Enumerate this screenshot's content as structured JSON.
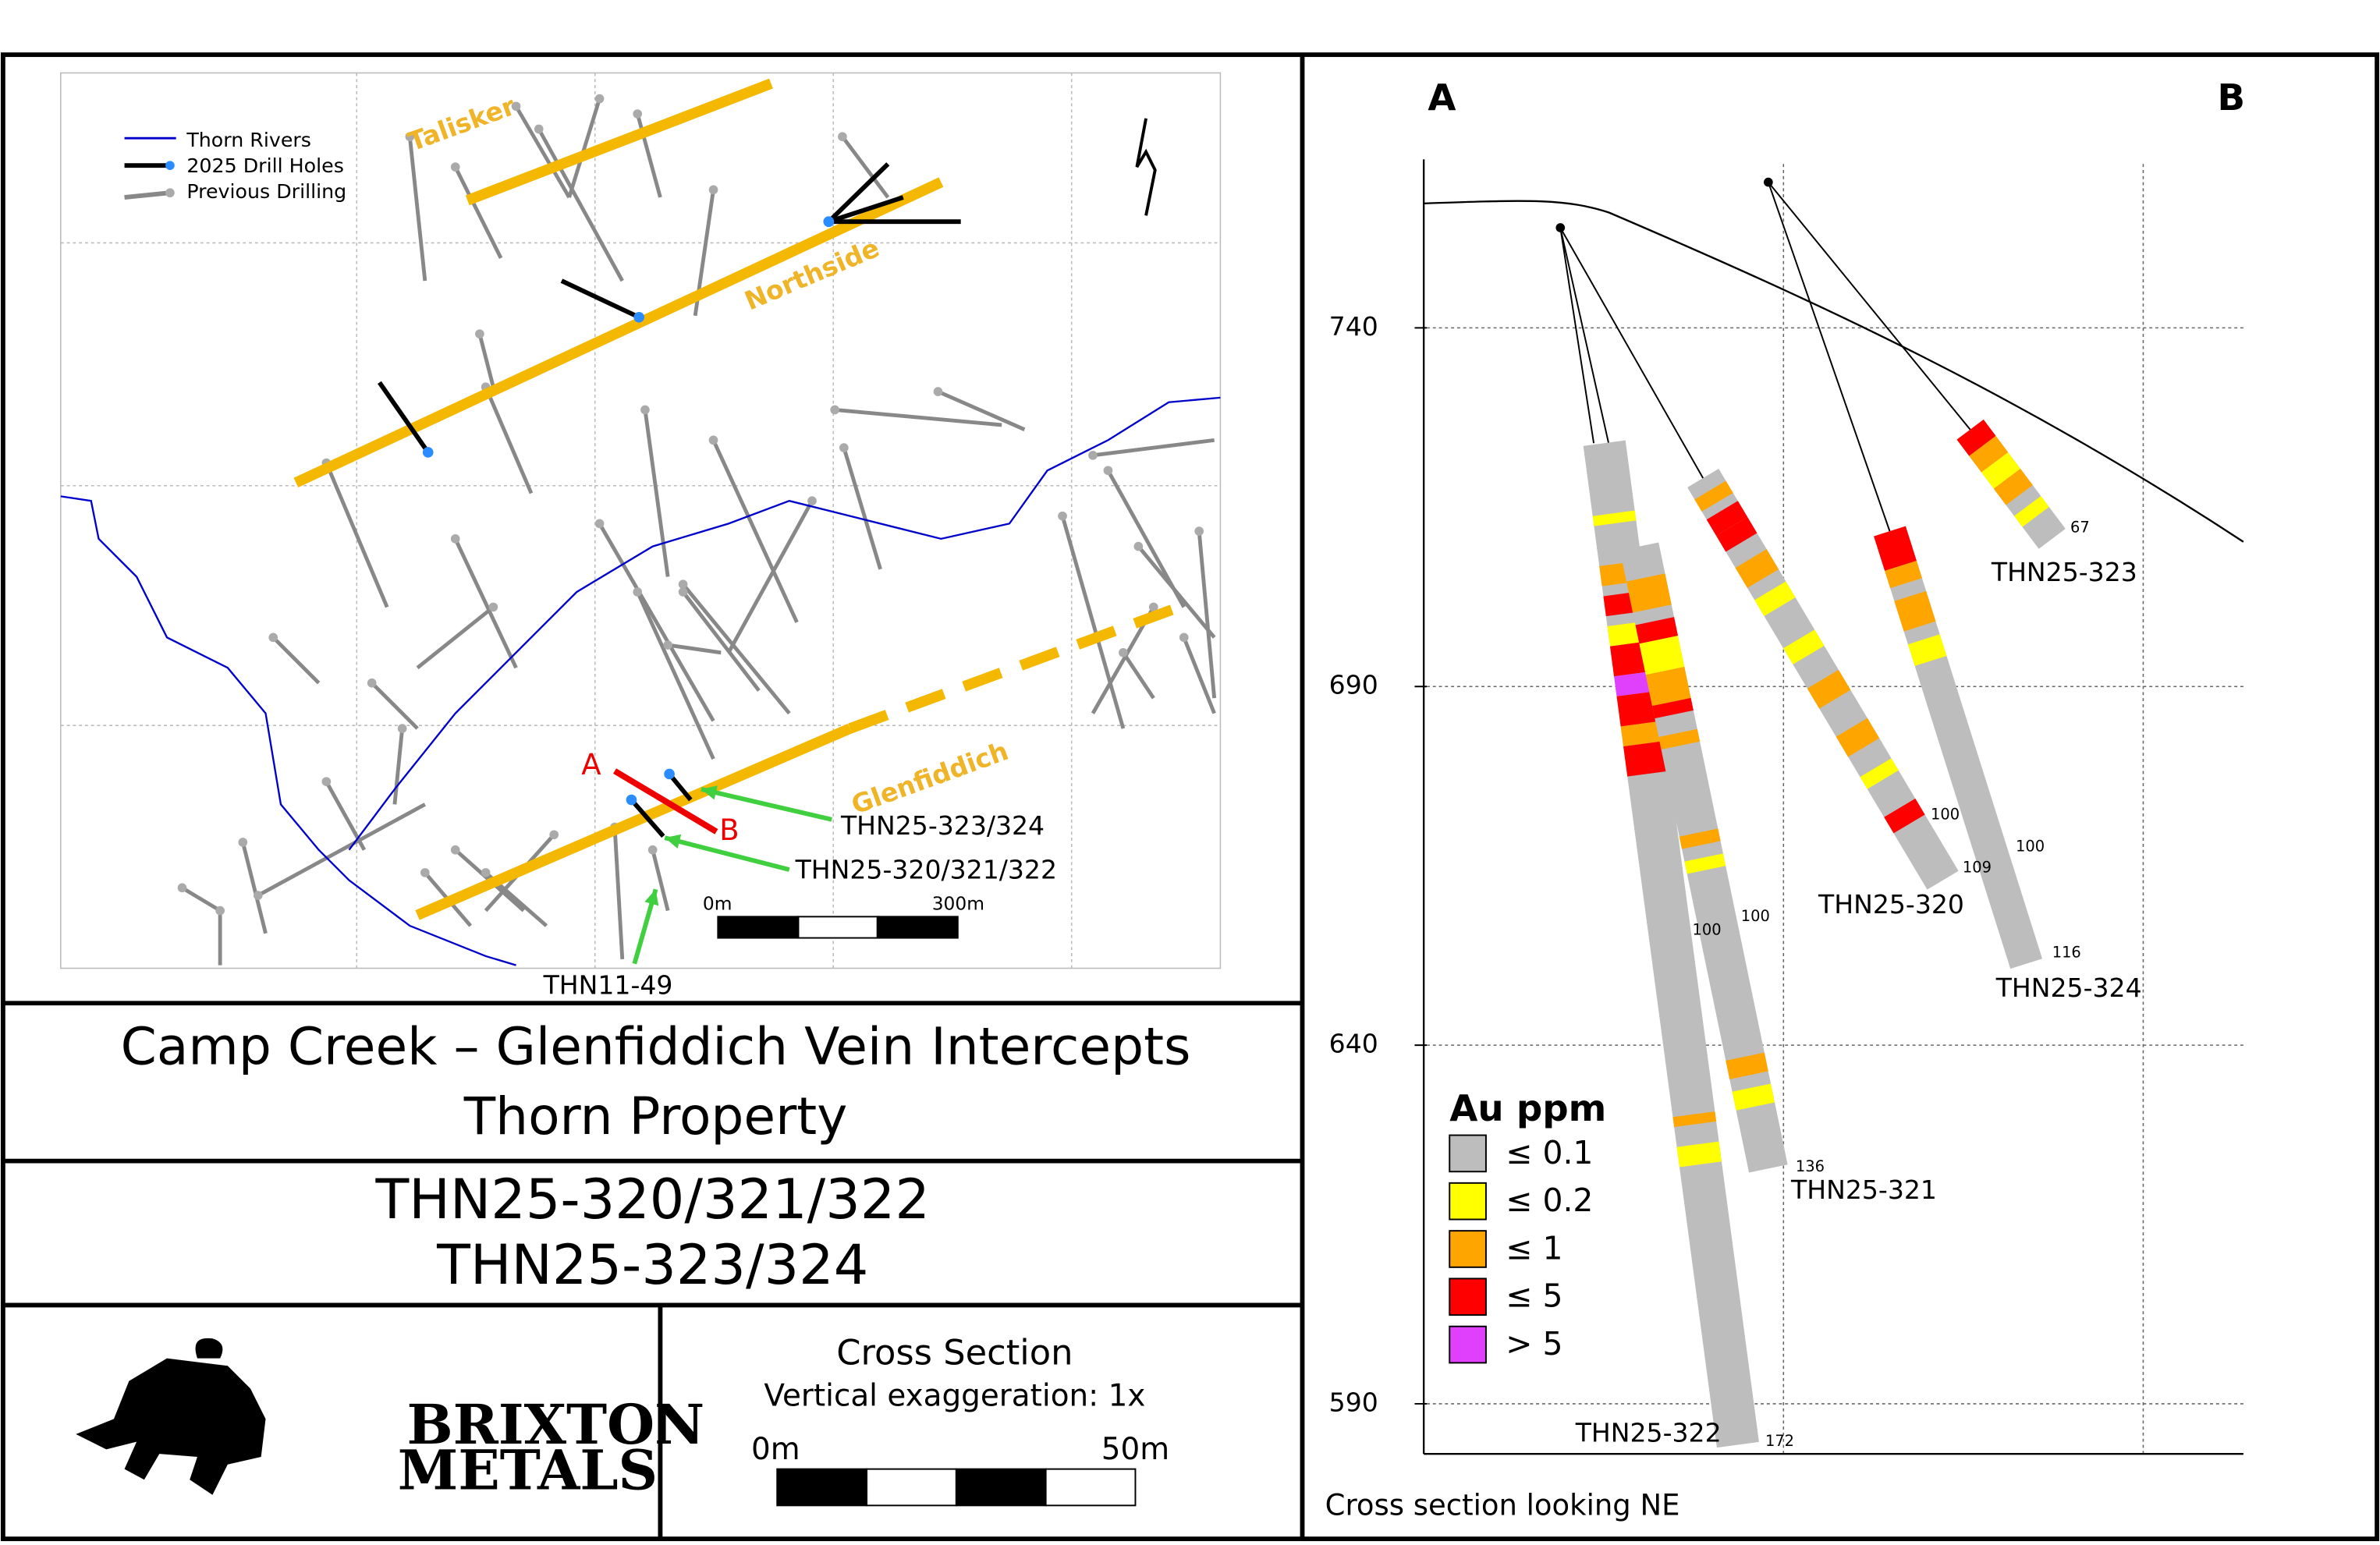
{
  "map": {
    "legend": [
      "Thorn Rivers",
      "2025 Drill Holes",
      "Previous Drilling"
    ],
    "zones": [
      "Talisker",
      "Northside",
      "Glenfiddich"
    ],
    "section_points": [
      "A",
      "B"
    ],
    "callouts": [
      "THN25-323/324",
      "THN25-320/321/322",
      "THN11-49"
    ],
    "scale": [
      "0m",
      "300m"
    ]
  },
  "title": [
    "Camp Creek – Glenfiddich Vein Intercepts",
    "Thorn Property"
  ],
  "holes_heading": [
    "THN25-320/321/322",
    "THN25-323/324"
  ],
  "logo": [
    "BRIXTON",
    "METALS"
  ],
  "section_info": {
    "title": "Cross Section",
    "exaggeration": "Vertical exaggeration: 1x",
    "scale": [
      "0m",
      "50m"
    ]
  },
  "cross_section": {
    "ends": [
      "A",
      "B"
    ],
    "elevation_ticks": [
      740,
      690,
      640,
      590
    ],
    "holes": [
      {
        "name": "THN25-322",
        "depths": [
          "100",
          "172"
        ]
      },
      {
        "name": "THN25-321",
        "depths": [
          "100",
          "136"
        ]
      },
      {
        "name": "THN25-320",
        "depths": [
          "100",
          "109"
        ]
      },
      {
        "name": "THN25-324",
        "depths": [
          "100",
          "116"
        ]
      },
      {
        "name": "THN25-323",
        "depths": [
          "67"
        ]
      }
    ],
    "legend": {
      "title": "Au ppm",
      "items": [
        "≤ 0.1",
        "≤ 0.2",
        "≤ 1",
        "≤ 5",
        "> 5"
      ]
    },
    "footer": "Cross section looking NE"
  }
}
